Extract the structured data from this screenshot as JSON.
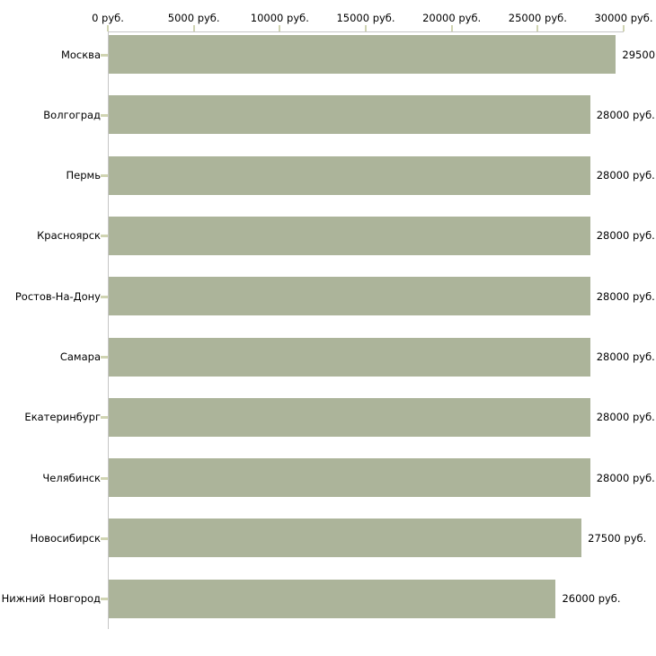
{
  "chart_data": {
    "type": "bar",
    "orientation": "horizontal",
    "title": "",
    "xlabel": "",
    "ylabel": "",
    "unit": "руб.",
    "xlim": [
      0,
      30000
    ],
    "axis_position": "top",
    "grid": false,
    "legend": false,
    "categories": [
      "Москва",
      "Волгоград",
      "Пермь",
      "Красноярск",
      "Ростов-На-Дону",
      "Самара",
      "Екатеринбург",
      "Челябинск",
      "Новосибирск",
      "Нижний Новгород"
    ],
    "values": [
      29500,
      28000,
      28000,
      28000,
      28000,
      28000,
      28000,
      28000,
      27500,
      26000
    ],
    "value_labels": [
      "29500",
      "28000 руб.",
      "28000 руб.",
      "28000 руб.",
      "28000 руб.",
      "28000 руб.",
      "28000 руб.",
      "28000 руб.",
      "27500 руб.",
      "26000 руб."
    ],
    "x_ticks": [
      0,
      5000,
      10000,
      15000,
      20000,
      25000,
      30000
    ],
    "x_tick_labels": [
      "0 руб.",
      "5000 руб.",
      "10000 руб.",
      "15000 руб.",
      "20000 руб.",
      "25000 руб.",
      "30000 руб."
    ],
    "colors": {
      "bar": "#acb49a",
      "axis_line": "#c6c6c6",
      "tick_mark": "#d0d4b2",
      "text": "#000000",
      "background": "#ffffff"
    }
  }
}
